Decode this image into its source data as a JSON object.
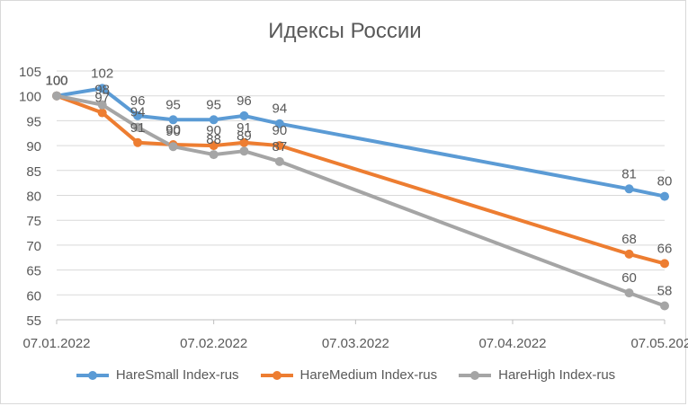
{
  "colors": {
    "series": [
      "#5b9bd5",
      "#ed7d31",
      "#a5a5a5"
    ],
    "grid": "#d9d9d9",
    "text": "#595959",
    "axis": "#bfbfbf"
  },
  "chart_data": {
    "type": "line",
    "title": "Идексы России",
    "xlabel": "",
    "ylabel": "",
    "ylim": [
      55,
      105
    ],
    "yticks": [
      55,
      60,
      65,
      70,
      75,
      80,
      85,
      90,
      95,
      100,
      105
    ],
    "x_axis": {
      "min": "2022-01-07",
      "max": "2022-05-07",
      "tick_dates": [
        "2022-01-07",
        "2022-02-07",
        "2022-03-07",
        "2022-04-07",
        "2022-05-07"
      ],
      "tick_labels": [
        "07.01.2022",
        "07.02.2022",
        "07.03.2022",
        "07.04.2022",
        "07.05.2022"
      ]
    },
    "grid": true,
    "legend_position": "bottom",
    "series": [
      {
        "name": "HareSmall Index-rus",
        "points": [
          {
            "x": "2022-01-07",
            "y": 100,
            "label": "100"
          },
          {
            "x": "2022-01-16",
            "y": 101.5,
            "label": "102"
          },
          {
            "x": "2022-01-23",
            "y": 96,
            "label": "96"
          },
          {
            "x": "2022-01-30",
            "y": 95.2,
            "label": "95"
          },
          {
            "x": "2022-02-07",
            "y": 95.2,
            "label": "95"
          },
          {
            "x": "2022-02-13",
            "y": 96,
            "label": "96"
          },
          {
            "x": "2022-02-20",
            "y": 94.4,
            "label": "94"
          },
          {
            "x": "2022-04-30",
            "y": 81.3,
            "label": "81"
          },
          {
            "x": "2022-05-07",
            "y": 79.8,
            "label": "80"
          }
        ]
      },
      {
        "name": "HareMedium Index-rus",
        "points": [
          {
            "x": "2022-01-07",
            "y": 100,
            "label": "100"
          },
          {
            "x": "2022-01-16",
            "y": 96.6,
            "label": "97"
          },
          {
            "x": "2022-01-23",
            "y": 90.6,
            "label": "91"
          },
          {
            "x": "2022-01-30",
            "y": 90.2,
            "label": "90"
          },
          {
            "x": "2022-02-07",
            "y": 90,
            "label": "90"
          },
          {
            "x": "2022-02-13",
            "y": 90.6,
            "label": "91"
          },
          {
            "x": "2022-02-20",
            "y": 90,
            "label": "90"
          },
          {
            "x": "2022-04-30",
            "y": 68.2,
            "label": "68"
          },
          {
            "x": "2022-05-07",
            "y": 66.3,
            "label": "66"
          }
        ]
      },
      {
        "name": "HareHigh Index-rus",
        "points": [
          {
            "x": "2022-01-07",
            "y": 100,
            "label": "100"
          },
          {
            "x": "2022-01-16",
            "y": 98.2,
            "label": "98"
          },
          {
            "x": "2022-01-23",
            "y": 93.7,
            "label": "94"
          },
          {
            "x": "2022-01-30",
            "y": 89.8,
            "label": "90"
          },
          {
            "x": "2022-02-07",
            "y": 88.2,
            "label": "88"
          },
          {
            "x": "2022-02-13",
            "y": 88.9,
            "label": "89"
          },
          {
            "x": "2022-02-20",
            "y": 86.8,
            "label": "87"
          },
          {
            "x": "2022-04-30",
            "y": 60.4,
            "label": "60"
          },
          {
            "x": "2022-05-07",
            "y": 57.8,
            "label": "58"
          }
        ]
      }
    ]
  }
}
